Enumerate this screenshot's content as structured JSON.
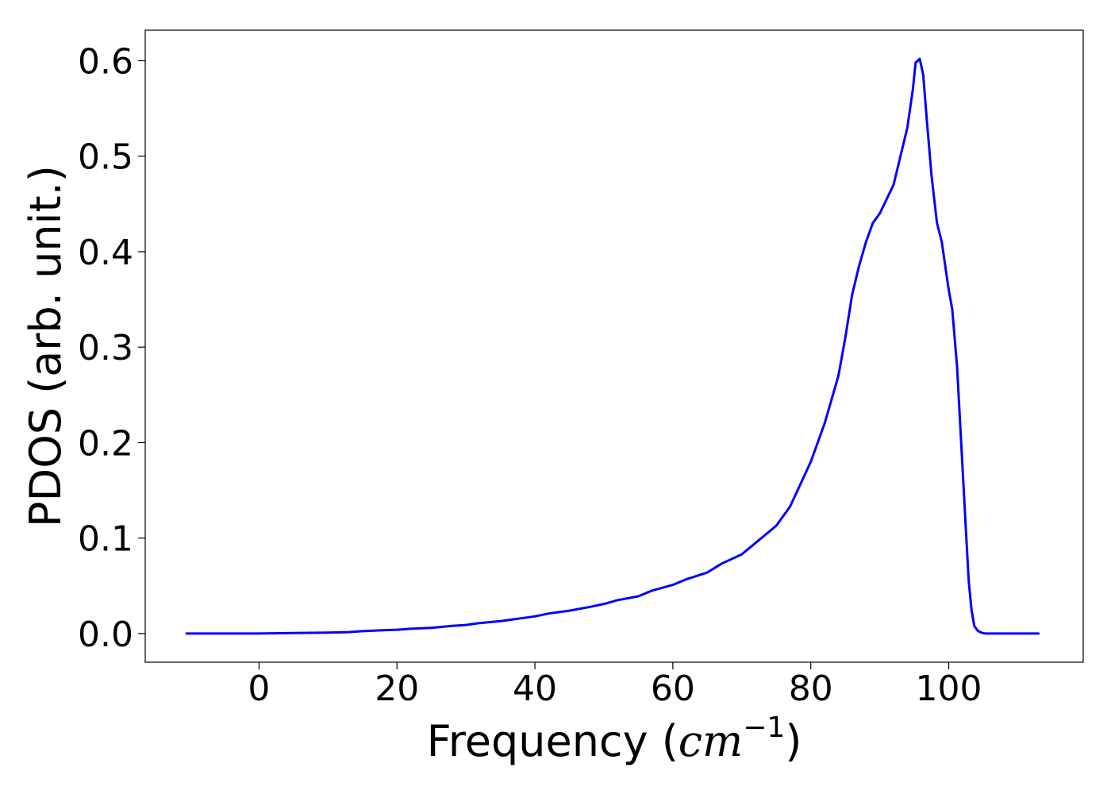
{
  "chart_data": {
    "type": "line",
    "title": "",
    "xlabel_prefix": "Frequency (",
    "xlabel_math": "cm",
    "xlabel_superscript": "−1",
    "xlabel_suffix": ")",
    "ylabel": "PDOS (arb. unit.)",
    "xlim": [
      -16.5,
      119.5
    ],
    "ylim": [
      -0.03,
      0.632
    ],
    "xticks": [
      0,
      20,
      40,
      60,
      80,
      100
    ],
    "xtick_labels": [
      "0",
      "20",
      "40",
      "60",
      "80",
      "100"
    ],
    "yticks": [
      0.0,
      0.1,
      0.2,
      0.3,
      0.4,
      0.5,
      0.6
    ],
    "ytick_labels": [
      "0.0",
      "0.1",
      "0.2",
      "0.3",
      "0.4",
      "0.5",
      "0.6"
    ],
    "grid": false,
    "legend": "none",
    "series": [
      {
        "color": "#0000ff",
        "x": [
          -10.5,
          0,
          5,
          10,
          13,
          15,
          18,
          20,
          22,
          25,
          28,
          30,
          32,
          35,
          38,
          40,
          42,
          45,
          48,
          50,
          52,
          55,
          57,
          60,
          62,
          65,
          67,
          70,
          72,
          75,
          77,
          80,
          82,
          84,
          85,
          86,
          87,
          88,
          89,
          90,
          92,
          93,
          94,
          94.8,
          95.2,
          95.8,
          96.3,
          96.8,
          97.5,
          98.3,
          99,
          100,
          100.5,
          101.2,
          101.8,
          102.4,
          102.9,
          103.3,
          103.7,
          104.2,
          104.7,
          105.3,
          106.5,
          110,
          113
        ],
        "y": [
          0.0,
          0.0,
          0.0005,
          0.001,
          0.0015,
          0.0025,
          0.0035,
          0.004,
          0.005,
          0.006,
          0.008,
          0.009,
          0.011,
          0.013,
          0.016,
          0.018,
          0.021,
          0.024,
          0.028,
          0.031,
          0.035,
          0.039,
          0.045,
          0.051,
          0.057,
          0.064,
          0.073,
          0.083,
          0.095,
          0.113,
          0.133,
          0.18,
          0.22,
          0.27,
          0.31,
          0.355,
          0.385,
          0.41,
          0.43,
          0.44,
          0.47,
          0.5,
          0.53,
          0.57,
          0.598,
          0.602,
          0.585,
          0.54,
          0.48,
          0.43,
          0.41,
          0.36,
          0.34,
          0.28,
          0.2,
          0.12,
          0.055,
          0.025,
          0.008,
          0.003,
          0.001,
          0.0,
          0.0,
          0.0,
          0.0
        ]
      }
    ]
  }
}
